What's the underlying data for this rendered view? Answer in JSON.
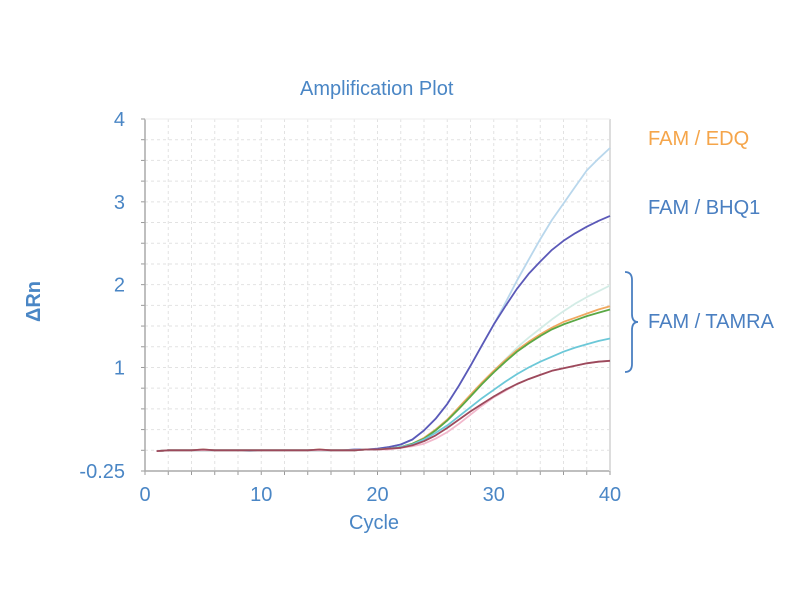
{
  "chart_data": {
    "type": "line",
    "title": "Amplification Plot",
    "xlabel": "Cycle",
    "ylabel": "ΔRn",
    "xlim": [
      0,
      40
    ],
    "ylim": [
      -0.25,
      4
    ],
    "xticks": [
      "0",
      "10",
      "20",
      "30",
      "40"
    ],
    "xtick_values": [
      0,
      10,
      20,
      30,
      40
    ],
    "yticks": [
      "4",
      "3",
      "2",
      "1",
      "-0.25"
    ],
    "ytick_values": [
      4,
      3,
      2,
      1,
      -0.25
    ],
    "grid": true,
    "x_start": 1,
    "series": [
      {
        "name": "FAM / EDQ 1",
        "group": "FAM / EDQ",
        "color": "#b9d7ec",
        "values": [
          -0.01,
          0,
          0,
          0,
          0.01,
          0,
          0,
          0,
          -0.01,
          0,
          0,
          0,
          0,
          0,
          0,
          0,
          0,
          0.01,
          0.01,
          0.02,
          0.04,
          0.07,
          0.13,
          0.24,
          0.38,
          0.56,
          0.78,
          1.02,
          1.27,
          1.52,
          1.78,
          2.05,
          2.3,
          2.55,
          2.78,
          2.98,
          3.18,
          3.38,
          3.52,
          3.65
        ]
      },
      {
        "name": "FAM / BHQ1",
        "group": "FAM / BHQ1",
        "color": "#5b59b8",
        "values": [
          -0.01,
          0,
          0,
          0,
          0,
          0,
          0,
          0,
          0,
          0,
          0,
          0,
          0,
          0,
          0,
          0,
          0,
          0.01,
          0.01,
          0.02,
          0.04,
          0.07,
          0.13,
          0.24,
          0.38,
          0.56,
          0.78,
          1.02,
          1.27,
          1.52,
          1.74,
          1.95,
          2.13,
          2.28,
          2.42,
          2.53,
          2.62,
          2.7,
          2.77,
          2.83
        ]
      },
      {
        "name": "FAM / TAMRA 1",
        "group": "FAM / TAMRA",
        "color": "#d3ece6",
        "values": [
          -0.01,
          0,
          0,
          0,
          0,
          0,
          0,
          0,
          0,
          0,
          0,
          0,
          0,
          0,
          0,
          0,
          0,
          0,
          0.01,
          0.01,
          0.02,
          0.04,
          0.08,
          0.15,
          0.25,
          0.37,
          0.52,
          0.67,
          0.82,
          0.96,
          1.1,
          1.24,
          1.36,
          1.47,
          1.58,
          1.68,
          1.77,
          1.85,
          1.92,
          1.99
        ]
      },
      {
        "name": "FAM / TAMRA 2",
        "group": "FAM / TAMRA",
        "color": "#f0a860",
        "values": [
          -0.01,
          0,
          0,
          0,
          0.01,
          0,
          0,
          0,
          0,
          0,
          0,
          0,
          0,
          0,
          0.01,
          0,
          0,
          0,
          0.01,
          0.01,
          0.02,
          0.04,
          0.08,
          0.15,
          0.25,
          0.37,
          0.52,
          0.67,
          0.82,
          0.96,
          1.09,
          1.21,
          1.31,
          1.4,
          1.48,
          1.55,
          1.6,
          1.65,
          1.7,
          1.74
        ]
      },
      {
        "name": "FAM / TAMRA 3",
        "group": "FAM / TAMRA",
        "color": "#5aa845",
        "values": [
          -0.01,
          0,
          0,
          0,
          0,
          0,
          0,
          0,
          0,
          0,
          0,
          0,
          0,
          0,
          0,
          0,
          0,
          0,
          0.01,
          0.01,
          0.02,
          0.04,
          0.08,
          0.14,
          0.24,
          0.36,
          0.5,
          0.65,
          0.8,
          0.94,
          1.07,
          1.19,
          1.29,
          1.38,
          1.46,
          1.52,
          1.57,
          1.62,
          1.66,
          1.7
        ]
      },
      {
        "name": "FAM / TAMRA 4",
        "group": "FAM / TAMRA",
        "color": "#6cc8d8",
        "values": [
          -0.01,
          0,
          0,
          0,
          0,
          0,
          0,
          0,
          0,
          0,
          0,
          0,
          0,
          0,
          0,
          0,
          0,
          0,
          0.01,
          0.01,
          0.02,
          0.04,
          0.07,
          0.13,
          0.21,
          0.3,
          0.41,
          0.52,
          0.63,
          0.73,
          0.83,
          0.92,
          1.0,
          1.07,
          1.13,
          1.19,
          1.24,
          1.28,
          1.32,
          1.35
        ]
      },
      {
        "name": "FAM / TAMRA 5",
        "group": "FAM / TAMRA",
        "color": "#f2b8cc",
        "values": [
          -0.01,
          0,
          0,
          0,
          0,
          0,
          0,
          0,
          0,
          0,
          0,
          0,
          0,
          0,
          0,
          0,
          0,
          0,
          0.01,
          0.01,
          0.01,
          0.03,
          0.05,
          0.08,
          0.14,
          0.22,
          0.32,
          0.43,
          0.54,
          0.64,
          0.72,
          0.8,
          0.86,
          0.91,
          0.96,
          0.99,
          1.02,
          1.05,
          1.07,
          1.08
        ]
      },
      {
        "name": "FAM / TAMRA 6",
        "group": "FAM / TAMRA",
        "color": "#9c4a5c",
        "values": [
          -0.01,
          0,
          0,
          0,
          0.01,
          0,
          0,
          0,
          0,
          0,
          0,
          0,
          0,
          0,
          0.01,
          0,
          0,
          0,
          0.01,
          0.01,
          0.02,
          0.03,
          0.06,
          0.11,
          0.18,
          0.27,
          0.37,
          0.47,
          0.56,
          0.65,
          0.73,
          0.8,
          0.86,
          0.91,
          0.96,
          0.99,
          1.02,
          1.05,
          1.07,
          1.08
        ]
      }
    ],
    "annotations": [
      {
        "text": "FAM / EDQ",
        "color": "#f5a54a"
      },
      {
        "text": "FAM / BHQ1",
        "color": "#4a7fc1"
      },
      {
        "text": "FAM / TAMRA",
        "color": "#4a7fc1"
      }
    ]
  }
}
